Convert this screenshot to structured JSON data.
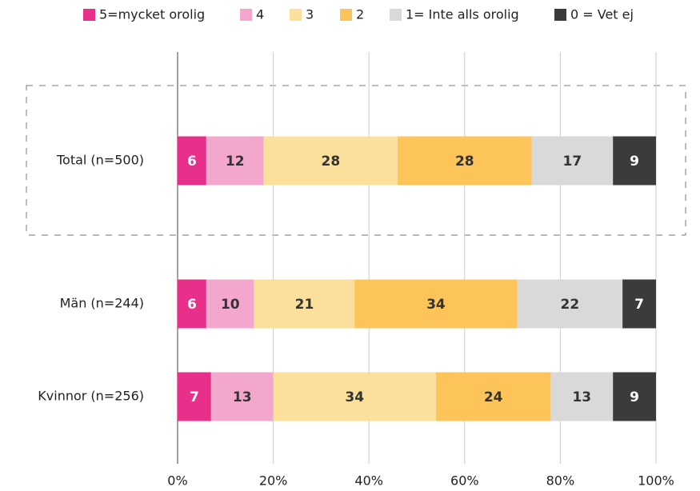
{
  "chart_data": {
    "type": "stacked-bar-horizontal",
    "categories": [
      "Total (n=500)",
      "Män (n=244)",
      "Kvinnor (n=256)"
    ],
    "series": [
      {
        "name": "5=mycket orolig",
        "color": "#e8308a",
        "values": [
          6,
          6,
          7
        ]
      },
      {
        "name": "4",
        "color": "#f4a7cc",
        "values": [
          12,
          10,
          13
        ]
      },
      {
        "name": "3",
        "color": "#fae09a",
        "values": [
          28,
          21,
          34
        ]
      },
      {
        "name": "2",
        "color": "#fdc45a",
        "values": [
          28,
          34,
          24
        ]
      },
      {
        "name": "1= Inte alls orolig",
        "color": "#d9d9d9",
        "values": [
          17,
          22,
          13
        ]
      },
      {
        "name": "0 = Vet ej",
        "color": "#3b3b3b",
        "values": [
          9,
          7,
          9
        ]
      }
    ],
    "xlim": [
      0,
      100
    ],
    "xticks": [
      {
        "value": 0,
        "label": "0%"
      },
      {
        "value": 20,
        "label": "20%"
      },
      {
        "value": 40,
        "label": "40%"
      },
      {
        "value": 60,
        "label": "60%"
      },
      {
        "value": 80,
        "label": "80%"
      },
      {
        "value": 100,
        "label": "100%"
      }
    ],
    "grid": true,
    "legend": "top"
  }
}
